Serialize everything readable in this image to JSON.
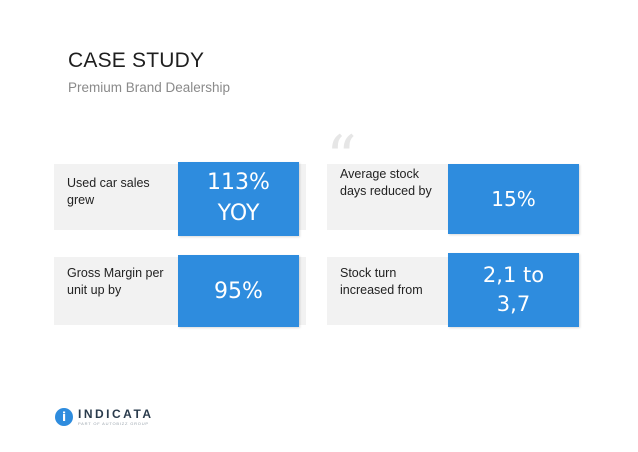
{
  "header": {
    "title": "CASE STUDY",
    "subtitle": "Premium Brand Dealership"
  },
  "decoration": {
    "quote_mark": "“"
  },
  "stats": [
    {
      "label": "Used car sales grew",
      "value_line1": "113%",
      "value_line2": "YOY"
    },
    {
      "label": "Average stock days reduced by",
      "value_line1": "15%",
      "value_line2": ""
    },
    {
      "label": "Gross Margin per unit up by",
      "value_line1": "95%",
      "value_line2": ""
    },
    {
      "label": "Stock turn increased from",
      "value_line1": "2,1 to",
      "value_line2": "3,7"
    }
  ],
  "logo": {
    "mark": "i",
    "name": "INDICATA",
    "tagline": "PART OF AUTOBIZZ GROUP"
  },
  "colors": {
    "accent": "#2e8cde",
    "card_bg": "#f2f2f2",
    "title": "#1f1f1f",
    "subtitle": "#8a8a8a"
  }
}
